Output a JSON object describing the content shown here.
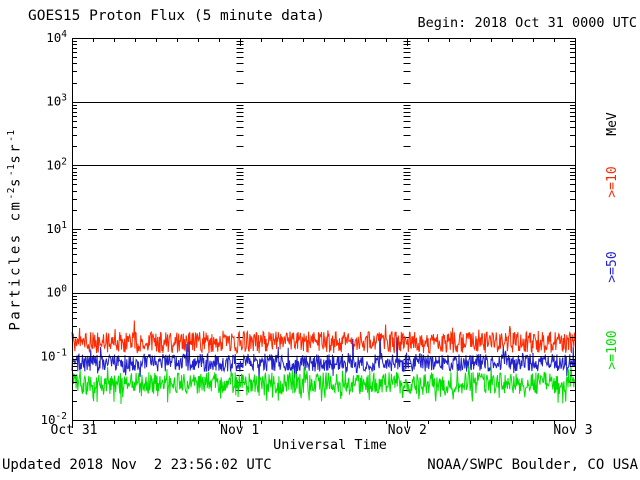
{
  "header": {
    "title": "GOES15 Proton Flux (5 minute data)",
    "begin_label": "Begin: 2018 Oct 31 0000 UTC"
  },
  "footer": {
    "updated": "Updated 2018 Nov  2 23:56:02 UTC",
    "source": "NOAA/SWPC Boulder, CO USA"
  },
  "chart_data": {
    "type": "line",
    "title": "GOES15 Proton Flux (5 minute data)",
    "begin": "Begin: 2018 Oct 31 0000 UTC",
    "xlabel": "Universal Time",
    "ylabel_parts": [
      {
        "t": "Particles cm",
        "sup": false
      },
      {
        "t": "-2",
        "sup": true
      },
      {
        "t": "s",
        "sup": false
      },
      {
        "t": "-1",
        "sup": true
      },
      {
        "t": "sr",
        "sup": false
      },
      {
        "t": "-1",
        "sup": true
      }
    ],
    "x_tick_labels": [
      "Oct 31",
      "Nov 1",
      "Nov 2",
      "Nov 3"
    ],
    "x_minor_ticks_per_day": 8,
    "y_scale": "log",
    "y_range_exponents": [
      -2,
      4
    ],
    "y_major_exponents": [
      4,
      3,
      2,
      1,
      0,
      -1,
      -2
    ],
    "solid_line_exponents": [
      3,
      2,
      0,
      -1
    ],
    "dashed_line_exponents": [
      1
    ],
    "unit_label": "MeV",
    "days": 3,
    "points_per_day": 288,
    "seed": 20181031,
    "background": "#ffffff",
    "axis_color": "#000000",
    "grid": true,
    "legend_position": "right-rotated",
    "series": [
      {
        "name": "protons_ge_10MeV",
        "label": ">=10",
        "color": "#ff2800",
        "mean_log10": -0.78,
        "spread_log10": 0.17,
        "spike_prob": 0.05,
        "spike_max": 0.2,
        "dip_prob": 0.0,
        "dip_max": 0.0,
        "approx_mean_flux": 0.17,
        "approx_range": [
          0.1,
          0.38
        ]
      },
      {
        "name": "protons_ge_50MeV",
        "label": ">=50",
        "color": "#2222cc",
        "mean_log10": -1.1,
        "spread_log10": 0.14,
        "spike_prob": 0.07,
        "spike_max": 0.3,
        "dip_prob": 0.05,
        "dip_max": 0.15,
        "approx_mean_flux": 0.08,
        "approx_range": [
          0.05,
          0.2
        ]
      },
      {
        "name": "protons_ge_100MeV",
        "label": ">=100",
        "color": "#00e000",
        "mean_log10": -1.42,
        "spread_log10": 0.17,
        "spike_prob": 0.1,
        "spike_max": 0.15,
        "dip_prob": 0.2,
        "dip_max": 0.2,
        "approx_mean_flux": 0.038,
        "approx_range": [
          0.02,
          0.07
        ]
      }
    ]
  }
}
